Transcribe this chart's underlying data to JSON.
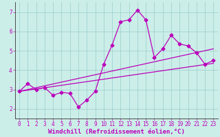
{
  "xlabel": "Windchill (Refroidissement éolien,°C)",
  "bg_color": "#cceee8",
  "line_color": "#bb00bb",
  "grid_color": "#99cccc",
  "axis_color": "#333333",
  "tick_label_color": "#bb00bb",
  "xlim": [
    -0.5,
    23.5
  ],
  "ylim": [
    1.5,
    7.5
  ],
  "xticks": [
    0,
    1,
    2,
    3,
    4,
    5,
    6,
    7,
    8,
    9,
    10,
    11,
    12,
    13,
    14,
    15,
    16,
    17,
    18,
    19,
    20,
    21,
    22,
    23
  ],
  "yticks": [
    2,
    3,
    4,
    5,
    6,
    7
  ],
  "series1_x": [
    0,
    1,
    2,
    3,
    4,
    5,
    6,
    7,
    8,
    9,
    10,
    11,
    12,
    13,
    14,
    15,
    16,
    17,
    18,
    19,
    20,
    21,
    22,
    23
  ],
  "series1_y": [
    2.9,
    3.3,
    3.0,
    3.1,
    2.7,
    2.85,
    2.8,
    2.1,
    2.45,
    2.9,
    4.3,
    5.3,
    6.5,
    6.6,
    7.1,
    6.6,
    4.65,
    5.1,
    5.8,
    5.35,
    5.25,
    4.9,
    4.3,
    4.5
  ],
  "series2_x": [
    0,
    23
  ],
  "series2_y": [
    2.9,
    4.35
  ],
  "series3_x": [
    0,
    23
  ],
  "series3_y": [
    2.9,
    5.1
  ],
  "marker": "D",
  "marker_size": 2.5,
  "linewidth": 0.9,
  "tick_fontsize": 5.5,
  "xlabel_fontsize": 6.5
}
